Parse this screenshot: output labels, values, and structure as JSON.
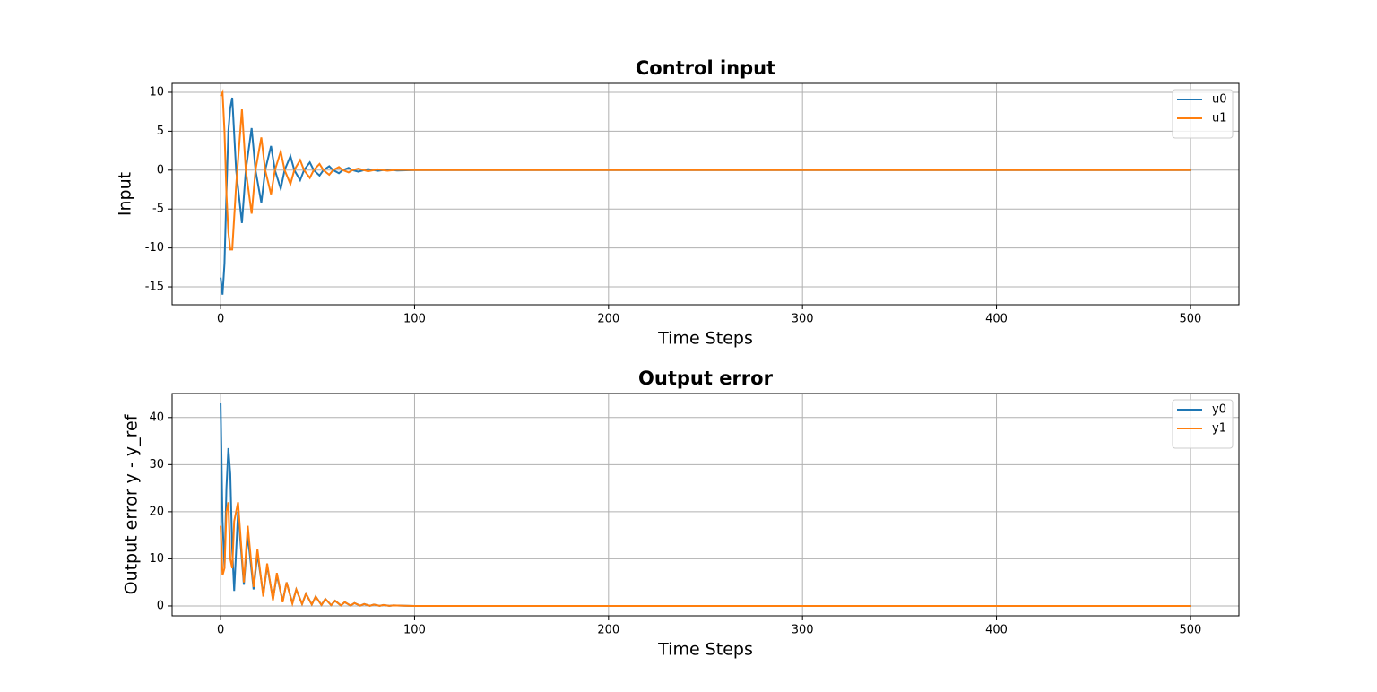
{
  "chart_data": [
    {
      "type": "line",
      "title": "Control input",
      "x_label": "Time Steps",
      "y_label": "Input",
      "x": [
        0,
        1,
        2,
        3,
        4,
        5,
        6,
        8,
        11,
        13,
        16,
        18,
        21,
        23,
        26,
        28,
        31,
        33,
        36,
        38,
        41,
        43,
        46,
        48,
        51,
        53,
        56,
        58,
        61,
        63,
        66,
        68,
        71,
        76,
        81,
        86,
        91,
        100,
        500
      ],
      "series": [
        {
          "name": "u0",
          "color": "#1f77b4",
          "values": [
            -13.8,
            -16,
            -12,
            -3,
            5,
            8,
            9.3,
            0,
            -6.8,
            0,
            5.4,
            0,
            -4.2,
            0,
            3.1,
            0,
            -2.4,
            0,
            1.8,
            0,
            -1.3,
            0,
            1.0,
            0,
            -0.7,
            0,
            0.5,
            0,
            -0.4,
            0,
            0.3,
            0,
            -0.2,
            0.15,
            -0.1,
            0.08,
            -0.05,
            0,
            0
          ]
        },
        {
          "name": "u1",
          "color": "#ff7f0e",
          "values": [
            9.5,
            10,
            5,
            -3,
            -8,
            -10.2,
            -10.2,
            -2,
            7.8,
            0,
            -5.6,
            0,
            4.2,
            0,
            -3.1,
            0,
            2.4,
            0,
            -1.8,
            0,
            1.3,
            0,
            -1.0,
            0,
            0.8,
            0,
            -0.6,
            0,
            0.4,
            0,
            -0.3,
            0,
            0.2,
            -0.15,
            0.1,
            -0.08,
            0.05,
            0,
            0
          ]
        }
      ],
      "xlim": [
        -25,
        525
      ],
      "xticks": [
        0,
        100,
        200,
        300,
        400,
        500
      ],
      "ylim": [
        -17.3,
        11.15
      ],
      "yticks": [
        -15,
        -10,
        -5,
        0,
        5,
        10
      ],
      "grid": true,
      "legend": "upper-right"
    },
    {
      "type": "line",
      "title": "Output error",
      "x_label": "Time Steps",
      "y_label": "Output error y - y_ref",
      "x": [
        0,
        1,
        2,
        3,
        4,
        5,
        6,
        7,
        9,
        12,
        14,
        17,
        19,
        22,
        24,
        27,
        29,
        32,
        34,
        37,
        39,
        42,
        44,
        47,
        49,
        52,
        54,
        57,
        59,
        62,
        64,
        67,
        69,
        72,
        74,
        77,
        79,
        82,
        84,
        87,
        89,
        95,
        100,
        500
      ],
      "series": [
        {
          "name": "y0",
          "color": "#1f77b4",
          "values": [
            43,
            18,
            8,
            25,
            33.5,
            28,
            12,
            3.2,
            20,
            4.5,
            15,
            3.5,
            11,
            2.5,
            8.5,
            1.5,
            6.5,
            1,
            5,
            0.6,
            3.5,
            0.4,
            2.6,
            0.3,
            2,
            0.2,
            1.5,
            0.15,
            1.1,
            0.1,
            0.8,
            0.07,
            0.6,
            0.05,
            0.4,
            0.03,
            0.3,
            0.02,
            0.2,
            0.01,
            0.12,
            0.05,
            0,
            0
          ]
        },
        {
          "name": "y1",
          "color": "#ff7f0e",
          "values": [
            17,
            6.5,
            8,
            20,
            22,
            10,
            8,
            18,
            22,
            5,
            17,
            4,
            12,
            2,
            9,
            1.2,
            7,
            0.8,
            5,
            0.5,
            3.5,
            0.4,
            2.6,
            0.3,
            2,
            0.2,
            1.5,
            0.15,
            1.1,
            0.1,
            0.8,
            0.07,
            0.6,
            0.05,
            0.4,
            0.03,
            0.3,
            0.02,
            0.2,
            0.01,
            0.12,
            0.05,
            0,
            0
          ]
        }
      ],
      "xlim": [
        -25,
        525
      ],
      "xticks": [
        0,
        100,
        200,
        300,
        400,
        500
      ],
      "ylim": [
        -2.1,
        45.1
      ],
      "yticks": [
        0,
        10,
        20,
        30,
        40
      ],
      "grid": true,
      "legend": "upper-right"
    }
  ]
}
